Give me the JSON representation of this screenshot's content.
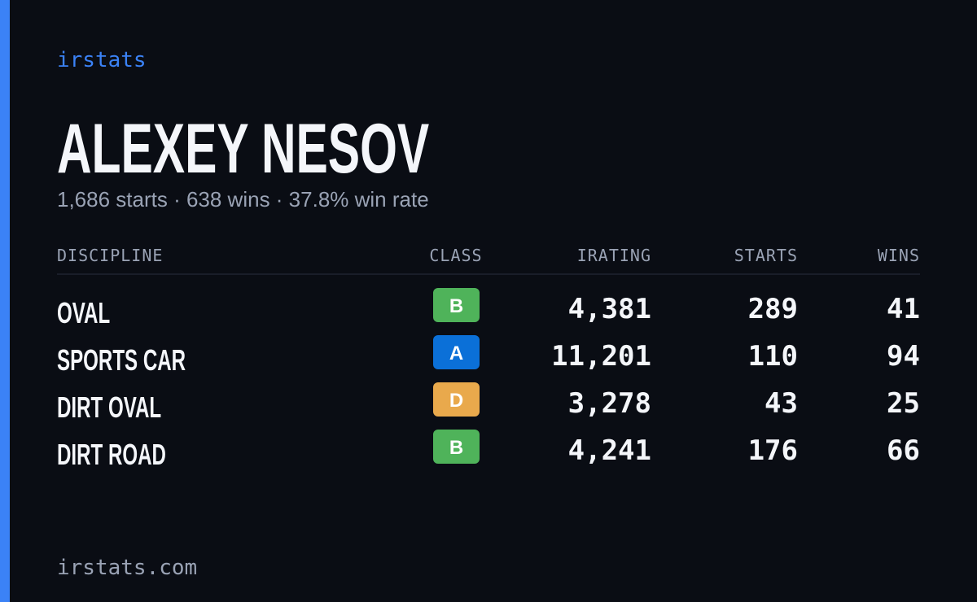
{
  "brand": "irstats",
  "name": "ALEXEY NESOV",
  "summary": "1,686 starts · 638 wins · 37.8% win rate",
  "table": {
    "headers": [
      "DISCIPLINE",
      "CLASS",
      "IRATING",
      "STARTS",
      "WINS"
    ],
    "rows": [
      {
        "discipline": "OVAL",
        "class": "B",
        "class_color": "#4fb35a",
        "irating": "4,381",
        "starts": "289",
        "wins": "41"
      },
      {
        "discipline": "SPORTS CAR",
        "class": "A",
        "class_color": "#0b70d8",
        "irating": "11,201",
        "starts": "110",
        "wins": "94"
      },
      {
        "discipline": "DIRT OVAL",
        "class": "D",
        "class_color": "#e9a94c",
        "irating": "3,278",
        "starts": "43",
        "wins": "25"
      },
      {
        "discipline": "DIRT ROAD",
        "class": "B",
        "class_color": "#4fb35a",
        "irating": "4,241",
        "starts": "176",
        "wins": "66"
      }
    ]
  },
  "footer": "irstats.com"
}
